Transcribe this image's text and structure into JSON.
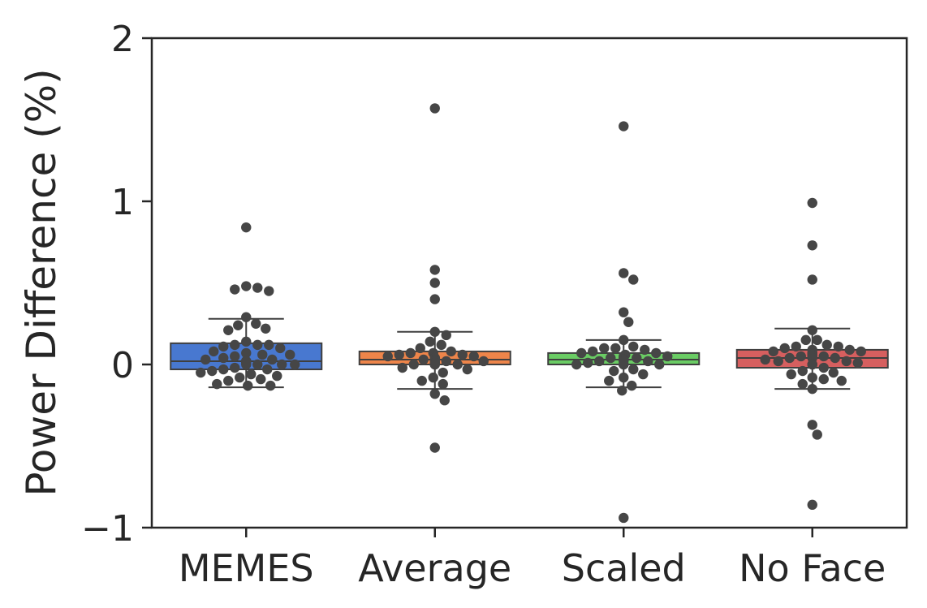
{
  "chart_data": {
    "type": "box",
    "ylabel": "Power Difference (%)",
    "xlabel": "",
    "title": "",
    "ylim": [
      -1,
      2
    ],
    "yticks": [
      "−1",
      "0",
      "1",
      "2"
    ],
    "grid": false,
    "legend": "none",
    "categories": [
      "MEMES",
      "Average",
      "Scaled",
      "No Face"
    ],
    "boxes": [
      {
        "category": "MEMES",
        "color": "#4878d0",
        "whisker_low": -0.14,
        "q1": -0.03,
        "median": 0.02,
        "q3": 0.13,
        "whisker_high": 0.28
      },
      {
        "category": "Average",
        "color": "#ee854a",
        "whisker_low": -0.15,
        "q1": 0.0,
        "median": 0.03,
        "q3": 0.08,
        "whisker_high": 0.2
      },
      {
        "category": "Scaled",
        "color": "#6acc64",
        "whisker_low": -0.14,
        "q1": 0.0,
        "median": 0.03,
        "q3": 0.07,
        "whisker_high": 0.15
      },
      {
        "category": "No Face",
        "color": "#d65f5f",
        "whisker_low": -0.15,
        "q1": -0.02,
        "median": 0.04,
        "q3": 0.09,
        "whisker_high": 0.22
      }
    ],
    "points": [
      {
        "category": "MEMES",
        "values": [
          0.84,
          0.48,
          0.46,
          0.47,
          0.45,
          0.29,
          0.25,
          0.22,
          0.24,
          0.21,
          0.14,
          0.12,
          0.12,
          0.12,
          0.11,
          0.1,
          0.08,
          0.07,
          0.06,
          0.06,
          0.05,
          0.04,
          0.03,
          0.03,
          0.02,
          0.02,
          0.02,
          0.02,
          0.01,
          0.0,
          0.0,
          0.0,
          0.0,
          -0.02,
          -0.03,
          -0.03,
          -0.04,
          -0.05,
          -0.06,
          -0.07,
          -0.08,
          -0.09,
          -0.1,
          -0.12,
          -0.13,
          -0.13
        ]
      },
      {
        "category": "Average",
        "values": [
          1.57,
          0.58,
          0.5,
          0.4,
          0.2,
          0.18,
          0.14,
          0.12,
          0.1,
          0.08,
          0.07,
          0.07,
          0.06,
          0.06,
          0.05,
          0.05,
          0.04,
          0.04,
          0.04,
          0.03,
          0.03,
          0.03,
          0.02,
          0.02,
          0.02,
          0.01,
          0.01,
          0.0,
          0.0,
          0.0,
          0.0,
          -0.02,
          -0.03,
          -0.05,
          -0.08,
          -0.1,
          -0.12,
          -0.18,
          -0.22,
          -0.51
        ]
      },
      {
        "category": "Scaled",
        "values": [
          1.46,
          0.56,
          0.52,
          0.32,
          0.26,
          0.15,
          0.11,
          0.1,
          0.1,
          0.09,
          0.08,
          0.07,
          0.07,
          0.06,
          0.05,
          0.05,
          0.04,
          0.04,
          0.04,
          0.03,
          0.03,
          0.03,
          0.02,
          0.02,
          0.02,
          0.01,
          0.0,
          0.0,
          0.0,
          0.0,
          -0.03,
          -0.04,
          -0.06,
          -0.08,
          -0.1,
          -0.13,
          -0.16,
          -0.94
        ]
      },
      {
        "category": "No Face",
        "values": [
          0.99,
          0.73,
          0.52,
          0.21,
          0.15,
          0.15,
          0.12,
          0.11,
          0.11,
          0.1,
          0.09,
          0.09,
          0.08,
          0.08,
          0.07,
          0.07,
          0.06,
          0.06,
          0.06,
          0.05,
          0.05,
          0.05,
          0.04,
          0.04,
          0.04,
          0.03,
          0.02,
          0.02,
          0.01,
          0.0,
          0.0,
          0.0,
          -0.02,
          -0.04,
          -0.05,
          -0.06,
          -0.08,
          -0.09,
          -0.1,
          -0.12,
          -0.15,
          -0.37,
          -0.43,
          -0.86
        ]
      }
    ]
  }
}
